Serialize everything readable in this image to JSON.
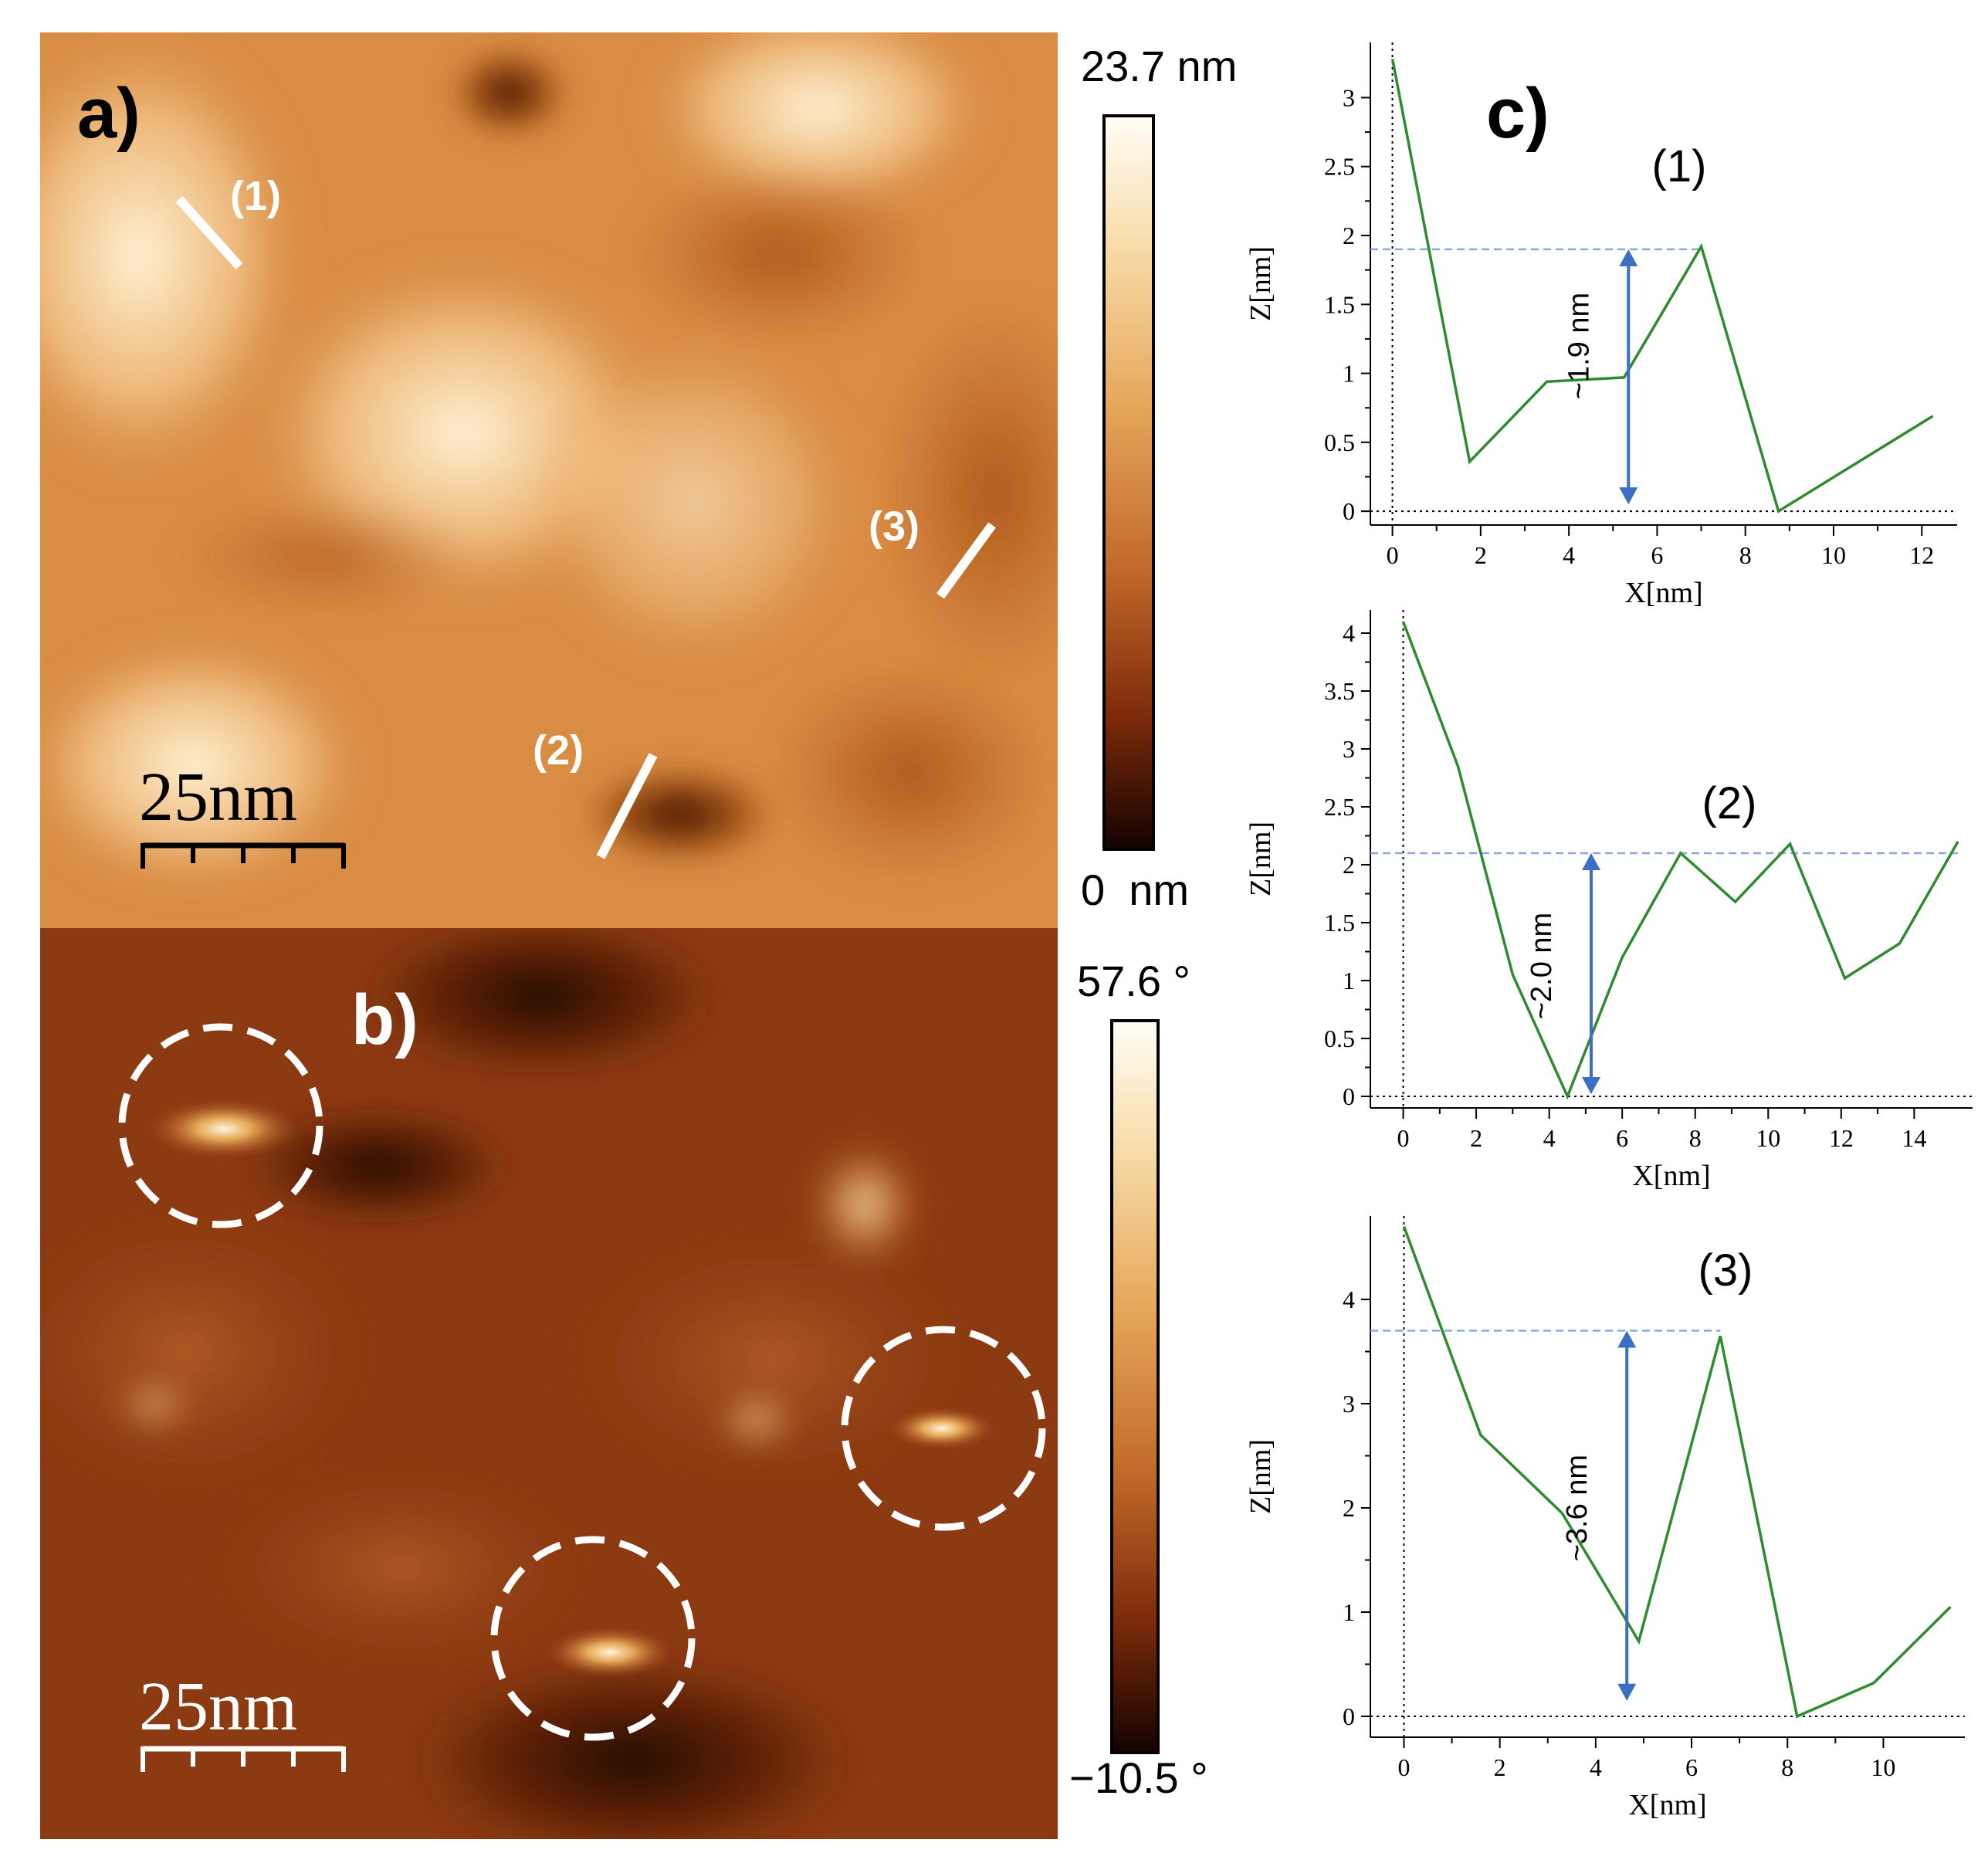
{
  "panels": {
    "a": {
      "label": "a)",
      "scale_bar": "25nm",
      "profile_lines": [
        {
          "id": "1",
          "text": "(1)"
        },
        {
          "id": "2",
          "text": "(2)"
        },
        {
          "id": "3",
          "text": "(3)"
        }
      ],
      "colorbar": {
        "max": "23.7 nm",
        "min": "0  nm"
      }
    },
    "b": {
      "label": "b)",
      "scale_bar": "25nm",
      "colorbar": {
        "max": "57.6 °",
        "min": "−10.5 °"
      },
      "highlight_regions": 3
    },
    "c": {
      "label": "c)"
    }
  },
  "colors": {
    "trace": "#2e8b2e",
    "annotation": "#3a6fc4",
    "guide": "#8aa8e0",
    "height_map_light": "#f7dcaa",
    "height_map_dark": "#2a0800"
  },
  "chart_data": [
    {
      "type": "line",
      "title": "(1)",
      "xlabel": "X[nm]",
      "ylabel": "Z[nm]",
      "xlim": [
        -0.5,
        12.8
      ],
      "ylim": [
        -0.1,
        3.4
      ],
      "xticks": [
        0,
        2,
        4,
        6,
        8,
        10,
        12
      ],
      "yticks": [
        0,
        0.5,
        1,
        1.5,
        2,
        2.5,
        3
      ],
      "ytick_labels": [
        "0",
        "0.5",
        "1",
        "1.5",
        "2",
        "2.5",
        "3"
      ],
      "x": [
        0,
        1.75,
        3.5,
        5.25,
        7.0,
        8.75,
        12.25
      ],
      "y": [
        3.28,
        0.36,
        0.94,
        0.97,
        1.92,
        0.0,
        0.69
      ],
      "annotation": {
        "text": "~1.9 nm",
        "x": 5.35,
        "y_top": 1.9,
        "y_bottom": 0.05
      }
    },
    {
      "type": "line",
      "title": "(2)",
      "xlabel": "X[nm]",
      "ylabel": "Z[nm]",
      "xlim": [
        -0.9,
        15.6
      ],
      "ylim": [
        -0.1,
        4.2
      ],
      "xticks": [
        0,
        2,
        4,
        6,
        8,
        10,
        12,
        14
      ],
      "yticks": [
        0,
        0.5,
        1,
        1.5,
        2,
        2.5,
        3,
        3.5,
        4
      ],
      "ytick_labels": [
        "0",
        "0.5",
        "1",
        "1.5",
        "2",
        "2.5",
        "3",
        "3.5",
        "4"
      ],
      "x": [
        0,
        1.5,
        3.0,
        4.5,
        6.0,
        7.6,
        9.1,
        10.6,
        12.1,
        13.6,
        15.2
      ],
      "y": [
        4.1,
        2.85,
        1.05,
        0.0,
        1.2,
        2.1,
        1.68,
        2.18,
        1.02,
        1.32,
        2.2
      ],
      "annotation": {
        "text": "~2.0 nm",
        "x": 5.15,
        "y_top": 2.1,
        "y_bottom": 0.02
      }
    },
    {
      "type": "line",
      "title": "(3)",
      "xlabel": "X[nm]",
      "ylabel": "Z[nm]",
      "xlim": [
        -0.7,
        11.7
      ],
      "ylim": [
        -0.2,
        4.8
      ],
      "xticks": [
        0,
        2,
        4,
        6,
        8,
        10
      ],
      "yticks": [
        0,
        1,
        2,
        3,
        4
      ],
      "ytick_labels": [
        "0",
        "1",
        "2",
        "3",
        "4"
      ],
      "x": [
        0,
        1.6,
        3.3,
        4.9,
        6.6,
        8.2,
        9.8,
        11.4
      ],
      "y": [
        4.7,
        2.7,
        1.95,
        0.72,
        3.65,
        0.0,
        0.32,
        1.05
      ],
      "annotation": {
        "text": "~3.6 nm",
        "x": 4.65,
        "y_top": 3.7,
        "y_bottom": 0.15
      }
    }
  ]
}
